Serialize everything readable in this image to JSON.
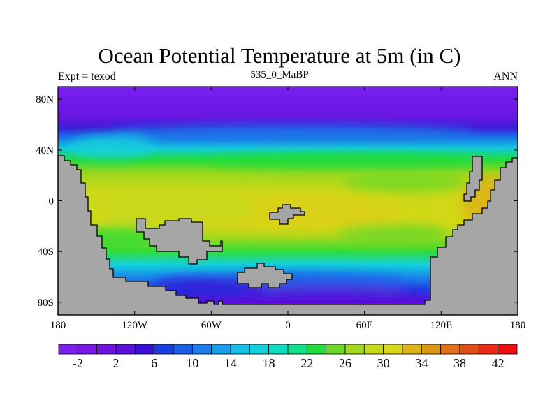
{
  "plot": {
    "title": "Ocean Potential Temperature at 5m (in C)",
    "left_label": "Expt = texod",
    "center_label": "535_0_MaBP",
    "right_label": "ANN"
  },
  "map": {
    "x_ticks": [
      {
        "lon": -180,
        "label": "180"
      },
      {
        "lon": -120,
        "label": "120W"
      },
      {
        "lon": -60,
        "label": "60W"
      },
      {
        "lon": 0,
        "label": "0"
      },
      {
        "lon": 60,
        "label": "60E"
      },
      {
        "lon": 120,
        "label": "120E"
      },
      {
        "lon": 180,
        "label": "180"
      }
    ],
    "y_ticks": [
      {
        "lat": 80,
        "label": "80N"
      },
      {
        "lat": 40,
        "label": "40N"
      },
      {
        "lat": 0,
        "label": "0"
      },
      {
        "lat": -40,
        "label": "40S"
      },
      {
        "lat": -80,
        "label": "80S"
      }
    ],
    "lon_range": [
      -180,
      180
    ],
    "lat_range": [
      -90,
      90
    ],
    "land_color": "#a6a6a6"
  },
  "colorbar": {
    "levels": [
      -4,
      -2,
      0,
      2,
      4,
      6,
      8,
      10,
      12,
      14,
      16,
      18,
      20,
      22,
      24,
      26,
      28,
      30,
      32,
      34,
      36,
      38,
      40,
      42,
      44
    ],
    "colors": [
      "#7a1ff0",
      "#7a17e6",
      "#6e14e0",
      "#5a10d8",
      "#3a10d6",
      "#1a3ee0",
      "#1a5ee8",
      "#1a80ec",
      "#18a0ec",
      "#14bee8",
      "#12d0dc",
      "#10dcc0",
      "#10e08a",
      "#22dc3c",
      "#6cd828",
      "#a4d81e",
      "#c6d81a",
      "#d8d816",
      "#dcb414",
      "#dc9812",
      "#e0701a",
      "#e44c18",
      "#ec2a18",
      "#f00c10"
    ],
    "labels": [
      {
        "value": -2,
        "label": "-2"
      },
      {
        "value": 2,
        "label": "2"
      },
      {
        "value": 6,
        "label": "6"
      },
      {
        "value": 10,
        "label": "10"
      },
      {
        "value": 14,
        "label": "14"
      },
      {
        "value": 18,
        "label": "18"
      },
      {
        "value": 22,
        "label": "22"
      },
      {
        "value": 26,
        "label": "26"
      },
      {
        "value": 30,
        "label": "30"
      },
      {
        "value": 34,
        "label": "34"
      },
      {
        "value": 38,
        "label": "38"
      },
      {
        "value": 42,
        "label": "42"
      }
    ]
  }
}
